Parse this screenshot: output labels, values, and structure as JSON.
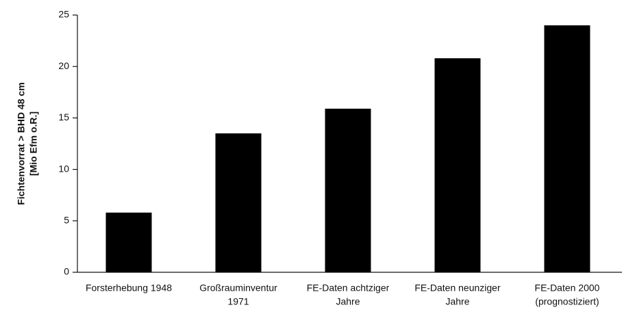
{
  "chart_data": {
    "type": "bar",
    "y_label": [
      "Fichtenvorrat > BHD 48 cm",
      "[Mio Efm o.R.]"
    ],
    "categories": [
      [
        "Forsterhebung 1948"
      ],
      [
        "Großrauminventur",
        "1971"
      ],
      [
        "FE-Daten  achtziger",
        "Jahre"
      ],
      [
        "FE-Daten neunziger",
        "Jahre"
      ],
      [
        "FE-Daten 2000",
        "(prognostiziert)"
      ]
    ],
    "values": [
      5.8,
      13.5,
      15.9,
      20.8,
      24.0
    ],
    "color": "#000000",
    "ylim": [
      0,
      25
    ],
    "yticks": [
      0,
      5,
      10,
      15,
      20,
      25
    ],
    "grid": false
  }
}
